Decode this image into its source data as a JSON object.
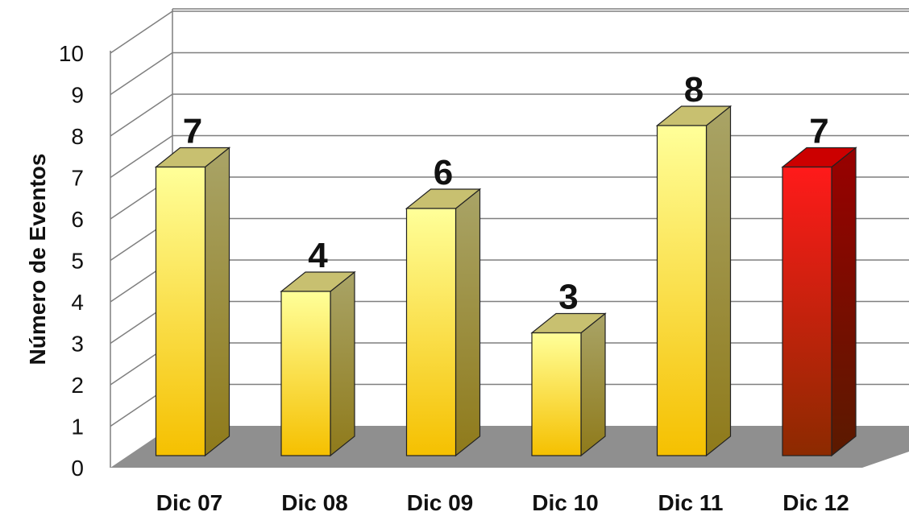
{
  "chart_data": {
    "type": "bar",
    "categories": [
      "Dic 07",
      "Dic 08",
      "Dic 09",
      "Dic 10",
      "Dic 11",
      "Dic 12"
    ],
    "values": [
      7,
      4,
      6,
      3,
      8,
      7
    ],
    "title": "",
    "xlabel": "",
    "ylabel": "Número de Eventos",
    "ylim": [
      0,
      10
    ],
    "yticks": [
      "0",
      "1",
      "2",
      "3",
      "4",
      "5",
      "6",
      "7",
      "8",
      "9",
      "10"
    ],
    "grid": true,
    "legend": "none",
    "bar_style": "3d",
    "colors": {
      "default_front_top": "#ffff99",
      "default_front_bottom": "#f5c000",
      "default_side": "#a09a50",
      "default_top": "#c8c070",
      "highlight_front_top": "#ff1a1a",
      "highlight_front_bottom": "#8c2a00",
      "highlight_side": "#7a0000",
      "highlight_top": "#cc0000",
      "floor": "#8f8f8f",
      "grid": "#7f7f7f"
    },
    "highlight_index": 5
  }
}
